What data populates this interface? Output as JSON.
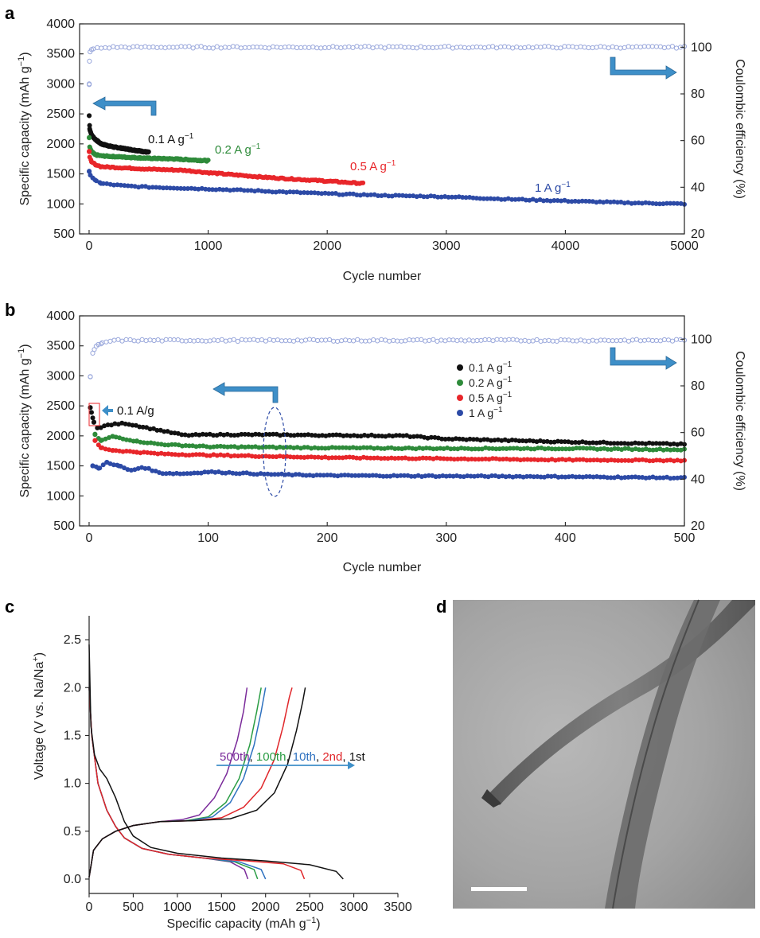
{
  "panels": {
    "a": "a",
    "b": "b",
    "c": "c",
    "d": "d"
  },
  "colors": {
    "black": "#111111",
    "green": "#2e8b3a",
    "red": "#e8262a",
    "blue": "#2c4aa6",
    "ce": "#9aa8dc",
    "arrow": "#3e8fc8",
    "purple": "#7a2a9a",
    "c_green": "#2a9d44",
    "c_blue": "#2f72c0",
    "c_red": "#e0262a",
    "c_black": "#111111"
  },
  "chart_data": [
    {
      "id": "a",
      "type": "scatter",
      "xlabel": "Cycle number",
      "ylabel": "Specific capacity (mAh g",
      "ylabel_sup": "−1",
      "ylabel_end": ")",
      "y2label": "Coulombic efficiency (%)",
      "xlim": [
        0,
        5000
      ],
      "ylim": [
        500,
        4000
      ],
      "y2lim": [
        20,
        110
      ],
      "xticks": [
        "0",
        "1000",
        "2000",
        "3000",
        "4000",
        "5000"
      ],
      "yticks": [
        "500",
        "1000",
        "1500",
        "2000",
        "2500",
        "3000",
        "3500",
        "4000"
      ],
      "y2ticks": [
        "20",
        "40",
        "60",
        "80",
        "100"
      ],
      "annotations": [
        {
          "text": "0.1 A g",
          "sup": "−1",
          "color": "black"
        },
        {
          "text": "0.2 A g",
          "sup": "−1",
          "color": "green"
        },
        {
          "text": "0.5 A g",
          "sup": "−1",
          "color": "red"
        },
        {
          "text": "1 A g",
          "sup": "−1",
          "color": "blue"
        }
      ],
      "series": [
        {
          "color": "black",
          "x": [
            1,
            5,
            20,
            50,
            100,
            200,
            300,
            400,
            500
          ],
          "y": [
            2470,
            2250,
            2150,
            2080,
            2000,
            1950,
            1920,
            1890,
            1860
          ]
        },
        {
          "color": "green",
          "x": [
            1,
            5,
            20,
            50,
            100,
            200,
            300,
            500,
            700,
            1000
          ],
          "y": [
            2100,
            1950,
            1870,
            1820,
            1800,
            1790,
            1780,
            1760,
            1750,
            1720
          ]
        },
        {
          "color": "red",
          "x": [
            1,
            5,
            20,
            50,
            100,
            300,
            500,
            800,
            1000,
            1500,
            2000,
            2300
          ],
          "y": [
            1870,
            1780,
            1700,
            1660,
            1620,
            1600,
            1580,
            1560,
            1520,
            1440,
            1380,
            1340
          ]
        },
        {
          "color": "blue",
          "x": [
            1,
            10,
            50,
            100,
            300,
            500,
            1000,
            1500,
            2000,
            2500,
            3000,
            3500,
            4000,
            4500,
            5000
          ],
          "y": [
            1540,
            1480,
            1400,
            1340,
            1300,
            1280,
            1250,
            1210,
            1170,
            1140,
            1120,
            1080,
            1050,
            1020,
            1000
          ]
        },
        {
          "color": "ce",
          "axis": "right",
          "x": [
            1,
            3,
            8,
            20,
            50,
            200,
            1000,
            2000,
            3000,
            4000,
            5000
          ],
          "y": [
            84,
            94,
            98,
            99,
            99.5,
            100,
            100,
            100,
            100,
            100,
            100
          ]
        }
      ]
    },
    {
      "id": "b",
      "type": "scatter",
      "xlabel": "Cycle number",
      "ylabel": "Specific capacity (mAh g",
      "ylabel_sup": "−1",
      "ylabel_end": ")",
      "y2label": "Coulombic efficiency (%)",
      "xlim": [
        0,
        500
      ],
      "ylim": [
        500,
        4000
      ],
      "y2lim": [
        20,
        110
      ],
      "xticks": [
        "0",
        "100",
        "200",
        "300",
        "400",
        "500"
      ],
      "yticks": [
        "500",
        "1000",
        "1500",
        "2000",
        "2500",
        "3000",
        "3500",
        "4000"
      ],
      "y2ticks": [
        "20",
        "40",
        "60",
        "80",
        "100"
      ],
      "inset_label": "0.1 A/g",
      "legend": [
        {
          "label": "0.1 A g",
          "sup": "−1",
          "color": "black"
        },
        {
          "label": "0.2 A g",
          "sup": "−1",
          "color": "green"
        },
        {
          "label": "0.5 A g",
          "sup": "−1",
          "color": "red"
        },
        {
          "label": "1 A g",
          "sup": "−1",
          "color": "blue"
        }
      ],
      "series": [
        {
          "color": "black",
          "x": [
            1,
            2,
            3,
            4,
            5,
            8,
            15,
            30,
            50,
            80,
            100,
            150,
            200,
            265,
            300,
            400,
            500
          ],
          "y": [
            2470,
            2390,
            2300,
            2230,
            2180,
            2120,
            2180,
            2210,
            2130,
            2010,
            2020,
            2020,
            2010,
            2000,
            1950,
            1900,
            1860
          ]
        },
        {
          "color": "green",
          "x": [
            5,
            10,
            20,
            40,
            60,
            100,
            150,
            200,
            300,
            400,
            500
          ],
          "y": [
            2020,
            1920,
            1990,
            1910,
            1860,
            1820,
            1810,
            1800,
            1790,
            1790,
            1770
          ]
        },
        {
          "color": "red",
          "x": [
            5,
            10,
            20,
            40,
            60,
            100,
            150,
            200,
            300,
            400,
            500
          ],
          "y": [
            1920,
            1800,
            1760,
            1730,
            1700,
            1680,
            1660,
            1640,
            1620,
            1600,
            1590
          ]
        },
        {
          "color": "blue",
          "x": [
            3,
            8,
            15,
            25,
            35,
            45,
            60,
            80,
            100,
            150,
            200,
            300,
            400,
            500
          ],
          "y": [
            1500,
            1460,
            1560,
            1500,
            1420,
            1480,
            1380,
            1370,
            1400,
            1360,
            1340,
            1330,
            1320,
            1300
          ]
        },
        {
          "color": "ce",
          "axis": "right",
          "x": [
            1,
            3,
            6,
            10,
            20,
            40,
            100,
            200,
            300,
            400,
            500
          ],
          "y": [
            84,
            94,
            97,
            98,
            99.5,
            99.5,
            99.5,
            99.5,
            99.5,
            99.5,
            99.5
          ]
        }
      ]
    },
    {
      "id": "c",
      "type": "line",
      "xlabel": "Specific capacity (mAh g",
      "xlabel_sup": "−1",
      "xlabel_end": ")",
      "ylabel": "Voltage (V vs. Na/Na",
      "ylabel_sup": "+",
      "ylabel_end": ")",
      "xlim": [
        0,
        3500
      ],
      "ylim": [
        -0.15,
        2.75
      ],
      "xticks": [
        "0",
        "500",
        "1000",
        "1500",
        "2000",
        "2500",
        "3000",
        "3500"
      ],
      "yticks": [
        "0.0",
        "0.5",
        "1.0",
        "1.5",
        "2.0",
        "2.5"
      ],
      "annotation": [
        {
          "text": "500th",
          "color": "purple"
        },
        {
          "text": ", ",
          "color": "c_black"
        },
        {
          "text": "100th",
          "color": "c_green"
        },
        {
          "text": ", ",
          "color": "c_black"
        },
        {
          "text": "10th",
          "color": "c_blue"
        },
        {
          "text": ", ",
          "color": "c_black"
        },
        {
          "text": "2nd",
          "color": "c_red"
        },
        {
          "text": ", 1st",
          "color": "c_black"
        }
      ],
      "series": [
        {
          "name": "1st",
          "color": "c_black",
          "discharge": {
            "x": [
              0,
              20,
              60,
              120,
              200,
              300,
              400,
              500,
              700,
              1000,
              1500,
              2000,
              2500,
              2800,
              2880
            ],
            "y": [
              2.45,
              1.6,
              1.3,
              1.15,
              1.05,
              0.85,
              0.6,
              0.45,
              0.33,
              0.27,
              0.22,
              0.19,
              0.15,
              0.08,
              0.0
            ]
          },
          "charge": {
            "x": [
              0,
              50,
              150,
              300,
              500,
              800,
              1200,
              1600,
              1900,
              2100,
              2250,
              2350,
              2420,
              2450
            ],
            "y": [
              0.02,
              0.3,
              0.42,
              0.5,
              0.56,
              0.6,
              0.61,
              0.63,
              0.72,
              0.9,
              1.2,
              1.55,
              1.85,
              2.0
            ]
          }
        },
        {
          "name": "2nd",
          "color": "c_red",
          "discharge": {
            "x": [
              0,
              30,
              100,
              200,
              300,
              400,
              600,
              900,
              1300,
              1800,
              2200,
              2400,
              2440
            ],
            "y": [
              2.0,
              1.5,
              1.0,
              0.72,
              0.55,
              0.43,
              0.32,
              0.26,
              0.22,
              0.19,
              0.16,
              0.09,
              0.0
            ]
          },
          "charge": {
            "x": [
              0,
              50,
              150,
              300,
              500,
              800,
              1200,
              1500,
              1750,
              1950,
              2100,
              2200,
              2270,
              2300
            ],
            "y": [
              0.02,
              0.3,
              0.42,
              0.5,
              0.56,
              0.6,
              0.61,
              0.64,
              0.75,
              0.95,
              1.25,
              1.6,
              1.9,
              2.0
            ]
          }
        },
        {
          "name": "10th",
          "color": "c_blue",
          "discharge": {
            "x": [
              0,
              30,
              100,
              200,
              300,
              400,
              600,
              900,
              1300,
              1700,
              1950,
              2000
            ],
            "y": [
              2.0,
              1.5,
              1.0,
              0.72,
              0.55,
              0.43,
              0.32,
              0.26,
              0.22,
              0.18,
              0.1,
              0.0
            ]
          },
          "charge": {
            "x": [
              0,
              50,
              150,
              300,
              500,
              800,
              1150,
              1400,
              1600,
              1750,
              1870,
              1950,
              2000
            ],
            "y": [
              0.02,
              0.3,
              0.42,
              0.5,
              0.56,
              0.6,
              0.61,
              0.65,
              0.8,
              1.05,
              1.4,
              1.75,
              2.0
            ]
          }
        },
        {
          "name": "100th",
          "color": "c_green",
          "discharge": {
            "x": [
              0,
              30,
              100,
              200,
              300,
              400,
              600,
              900,
              1300,
              1650,
              1870,
              1910
            ],
            "y": [
              2.0,
              1.5,
              1.0,
              0.72,
              0.55,
              0.43,
              0.32,
              0.26,
              0.22,
              0.18,
              0.1,
              0.0
            ]
          },
          "charge": {
            "x": [
              0,
              50,
              150,
              300,
              500,
              800,
              1100,
              1350,
              1550,
              1700,
              1820,
              1900,
              1950
            ],
            "y": [
              0.02,
              0.3,
              0.42,
              0.5,
              0.56,
              0.6,
              0.61,
              0.65,
              0.8,
              1.05,
              1.4,
              1.75,
              2.0
            ]
          }
        },
        {
          "name": "500th",
          "color": "purple",
          "discharge": {
            "x": [
              0,
              30,
              100,
              200,
              300,
              400,
              600,
              900,
              1300,
              1600,
              1760,
              1800
            ],
            "y": [
              2.0,
              1.5,
              1.0,
              0.72,
              0.55,
              0.43,
              0.32,
              0.26,
              0.22,
              0.18,
              0.1,
              0.0
            ]
          },
          "charge": {
            "x": [
              0,
              50,
              150,
              300,
              500,
              800,
              1050,
              1250,
              1420,
              1560,
              1680,
              1750,
              1790
            ],
            "y": [
              0.02,
              0.3,
              0.42,
              0.5,
              0.56,
              0.6,
              0.62,
              0.67,
              0.85,
              1.1,
              1.45,
              1.75,
              2.0
            ]
          }
        }
      ]
    }
  ]
}
